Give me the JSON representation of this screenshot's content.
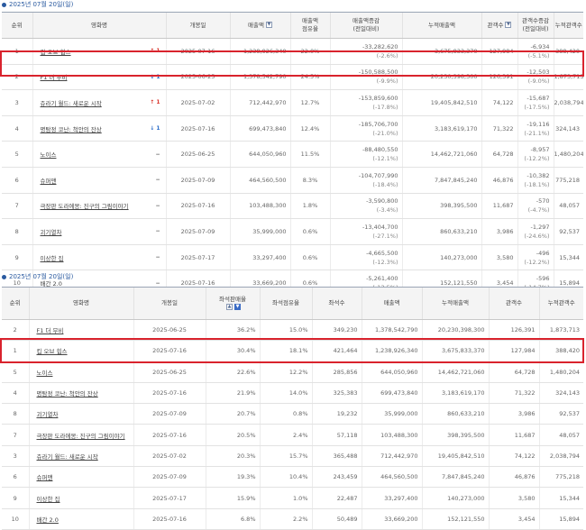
{
  "table1": {
    "date_title": "2025년 07월 20일(일)",
    "headers": {
      "rank": "순위",
      "movie": "영화명",
      "open_date": "개봉일",
      "sales": "매출액",
      "sales_share": "매출액\n점유율",
      "sales_change": "매출액증감\n(전일대비)",
      "cum_sales": "누적매출액",
      "audience": "관객수",
      "aud_change": "관객수증감\n(전일대비)",
      "cum_audience": "누적관객수"
    },
    "rows": [
      {
        "rank": "1",
        "movie": "킵 오브 힙스",
        "rank_change": "↑ 1",
        "dir": "up",
        "open_date": "2025-07-16",
        "sales": "1,238,926,340",
        "sales_share": "22.0%",
        "sales_change": "-33,282,620",
        "sales_change_pct": "(-2.6%)",
        "cum_sales": "3,675,833,370",
        "audience": "127,984",
        "aud_change": "-6,934",
        "aud_change_pct": "(-5.1%)",
        "cum_audience": "388,420"
      },
      {
        "rank": "2",
        "movie": "F1 더 무비",
        "rank_change": "↓ 1",
        "dir": "down",
        "open_date": "2025-06-25",
        "sales": "1,378,542,790",
        "sales_share": "24.5%",
        "sales_change": "-150,588,500",
        "sales_change_pct": "(-9.9%)",
        "cum_sales": "20,230,398,300",
        "audience": "126,391",
        "aud_change": "-12,503",
        "aud_change_pct": "(-9.0%)",
        "cum_audience": "1,873,713"
      },
      {
        "rank": "3",
        "movie": "쥬라기 월드: 새로운 시작",
        "rank_change": "↑ 1",
        "dir": "up",
        "open_date": "2025-07-02",
        "sales": "712,442,970",
        "sales_share": "12.7%",
        "sales_change": "-153,859,600",
        "sales_change_pct": "(-17.8%)",
        "cum_sales": "19,405,842,510",
        "audience": "74,122",
        "aud_change": "-15,687",
        "aud_change_pct": "(-17.5%)",
        "cum_audience": "2,038,794"
      },
      {
        "rank": "4",
        "movie": "명탐정 코난: 척안의 잔상",
        "rank_change": "↓ 1",
        "dir": "down",
        "open_date": "2025-07-16",
        "sales": "699,473,840",
        "sales_share": "12.4%",
        "sales_change": "-185,706,700",
        "sales_change_pct": "(-21.0%)",
        "cum_sales": "3,183,619,170",
        "audience": "71,322",
        "aud_change": "-19,116",
        "aud_change_pct": "(-21.1%)",
        "cum_audience": "324,143"
      },
      {
        "rank": "5",
        "movie": "노이스",
        "rank_change": "−",
        "dir": "same",
        "open_date": "2025-06-25",
        "sales": "644,050,960",
        "sales_share": "11.5%",
        "sales_change": "-88,480,550",
        "sales_change_pct": "(-12.1%)",
        "cum_sales": "14,462,721,060",
        "audience": "64,728",
        "aud_change": "-8,957",
        "aud_change_pct": "(-12.2%)",
        "cum_audience": "1,480,204"
      },
      {
        "rank": "6",
        "movie": "슈퍼맨",
        "rank_change": "−",
        "dir": "same",
        "open_date": "2025-07-09",
        "sales": "464,560,500",
        "sales_share": "8.3%",
        "sales_change": "-104,707,990",
        "sales_change_pct": "(-18.4%)",
        "cum_sales": "7,847,845,240",
        "audience": "46,876",
        "aud_change": "-10,382",
        "aud_change_pct": "(-18.1%)",
        "cum_audience": "775,218"
      },
      {
        "rank": "7",
        "movie": "극장판 도라에몽: 진구의 그림이야기",
        "rank_change": "−",
        "dir": "same",
        "open_date": "2025-07-16",
        "sales": "103,488,300",
        "sales_share": "1.8%",
        "sales_change": "-3,590,800",
        "sales_change_pct": "(-3.4%)",
        "cum_sales": "398,395,500",
        "audience": "11,687",
        "aud_change": "-570",
        "aud_change_pct": "(-4.7%)",
        "cum_audience": "48,057"
      },
      {
        "rank": "8",
        "movie": "괴기열차",
        "rank_change": "−",
        "dir": "same",
        "open_date": "2025-07-09",
        "sales": "35,999,000",
        "sales_share": "0.6%",
        "sales_change": "-13,404,700",
        "sales_change_pct": "(-27.1%)",
        "cum_sales": "860,633,210",
        "audience": "3,986",
        "aud_change": "-1,297",
        "aud_change_pct": "(-24.6%)",
        "cum_audience": "92,537"
      },
      {
        "rank": "9",
        "movie": "이상한 집",
        "rank_change": "−",
        "dir": "same",
        "open_date": "2025-07-17",
        "sales": "33,297,400",
        "sales_share": "0.6%",
        "sales_change": "-4,665,500",
        "sales_change_pct": "(-12.3%)",
        "cum_sales": "140,273,000",
        "audience": "3,580",
        "aud_change": "-496",
        "aud_change_pct": "(-12.2%)",
        "cum_audience": "15,344"
      },
      {
        "rank": "10",
        "movie": "배간 2.0",
        "rank_change": "−",
        "dir": "same",
        "open_date": "2025-07-16",
        "sales": "33,669,200",
        "sales_share": "0.6%",
        "sales_change": "-5,261,400",
        "sales_change_pct": "(-13.5%)",
        "cum_sales": "152,121,550",
        "audience": "3,454",
        "aud_change": "-596",
        "aud_change_pct": "(-14.7%)",
        "cum_audience": "15,894"
      }
    ]
  },
  "table2": {
    "date_title": "2025년 07월 20일(일)",
    "headers": {
      "rank": "순위",
      "movie": "영화명",
      "open_date": "개봉일",
      "seat_sales_rate": "좌석판매율",
      "seat_share": "좌석점유율",
      "seats": "좌석수",
      "sales": "매출액",
      "cum_sales": "누적매출액",
      "audience": "관객수",
      "cum_audience": "누적관객수"
    },
    "rows": [
      {
        "rank": "2",
        "movie": "F1 더 무비",
        "open_date": "2025-06-25",
        "seat_sales_rate": "36.2%",
        "seat_share": "15.0%",
        "seats": "349,230",
        "sales": "1,378,542,790",
        "cum_sales": "20,230,398,300",
        "audience": "126,391",
        "cum_audience": "1,873,713"
      },
      {
        "rank": "1",
        "movie": "킵 오브 힙스",
        "open_date": "2025-07-16",
        "seat_sales_rate": "30.4%",
        "seat_share": "18.1%",
        "seats": "421,464",
        "sales": "1,238,926,340",
        "cum_sales": "3,675,833,370",
        "audience": "127,984",
        "cum_audience": "388,420"
      },
      {
        "rank": "5",
        "movie": "노이스",
        "open_date": "2025-06-25",
        "seat_sales_rate": "22.6%",
        "seat_share": "12.2%",
        "seats": "285,856",
        "sales": "644,050,960",
        "cum_sales": "14,462,721,060",
        "audience": "64,728",
        "cum_audience": "1,480,204"
      },
      {
        "rank": "4",
        "movie": "명탐정 코난: 척안의 잔상",
        "open_date": "2025-07-16",
        "seat_sales_rate": "21.9%",
        "seat_share": "14.0%",
        "seats": "325,383",
        "sales": "699,473,840",
        "cum_sales": "3,183,619,170",
        "audience": "71,322",
        "cum_audience": "324,143"
      },
      {
        "rank": "8",
        "movie": "괴기열차",
        "open_date": "2025-07-09",
        "seat_sales_rate": "20.7%",
        "seat_share": "0.8%",
        "seats": "19,232",
        "sales": "35,999,000",
        "cum_sales": "860,633,210",
        "audience": "3,986",
        "cum_audience": "92,537"
      },
      {
        "rank": "7",
        "movie": "극장판 도라에몽: 진구의 그림이야기",
        "open_date": "2025-07-16",
        "seat_sales_rate": "20.5%",
        "seat_share": "2.4%",
        "seats": "57,118",
        "sales": "103,488,300",
        "cum_sales": "398,395,500",
        "audience": "11,687",
        "cum_audience": "48,057"
      },
      {
        "rank": "3",
        "movie": "쥬라기 월드: 새로운 시작",
        "open_date": "2025-07-02",
        "seat_sales_rate": "20.3%",
        "seat_share": "15.7%",
        "seats": "365,488",
        "sales": "712,442,970",
        "cum_sales": "19,405,842,510",
        "audience": "74,122",
        "cum_audience": "2,038,794"
      },
      {
        "rank": "6",
        "movie": "슈퍼맨",
        "open_date": "2025-07-09",
        "seat_sales_rate": "19.3%",
        "seat_share": "10.4%",
        "seats": "243,459",
        "sales": "464,560,500",
        "cum_sales": "7,847,845,240",
        "audience": "46,876",
        "cum_audience": "775,218"
      },
      {
        "rank": "9",
        "movie": "이상한 집",
        "open_date": "2025-07-17",
        "seat_sales_rate": "15.9%",
        "seat_share": "1.0%",
        "seats": "22,487",
        "sales": "33,297,400",
        "cum_sales": "140,273,000",
        "audience": "3,580",
        "cum_audience": "15,344"
      },
      {
        "rank": "10",
        "movie": "배간 2.0",
        "open_date": "2025-07-16",
        "seat_sales_rate": "6.8%",
        "seat_share": "2.2%",
        "seats": "50,489",
        "sales": "33,669,200",
        "cum_sales": "152,121,550",
        "audience": "3,454",
        "cum_audience": "15,894"
      }
    ]
  },
  "icons": {
    "sort_up": "▲",
    "sort_down": "▼"
  },
  "colors": {
    "accent": "#2a5aa0",
    "highlight": "#d9232d",
    "up": "#d9342b",
    "down": "#2a6cc8"
  }
}
